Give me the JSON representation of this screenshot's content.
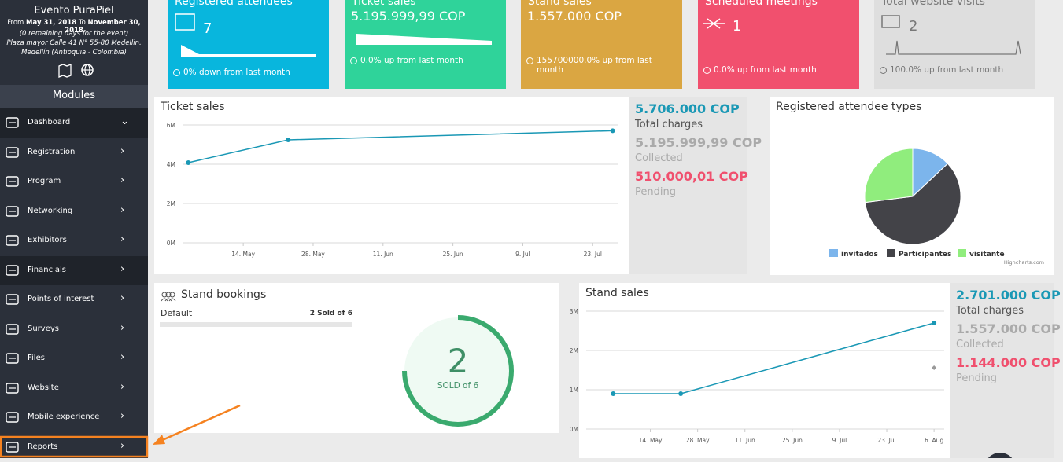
{
  "sidebar": {
    "event_name": "Evento PuraPiel",
    "dates": [
      "From",
      "May 31, 2018",
      "To",
      "November 30, 2018"
    ],
    "remaining": "(0 remaining days for the event)",
    "address": "Plaza mayor Calle 41 N° 55-80 Medellin.",
    "city": "Medellín (Antioquia - Colombia)",
    "modules_title": "Modules",
    "menu": [
      "Dashboard",
      "Registration",
      "Program",
      "Networking",
      "Exhibitors",
      "Financials",
      "Points of interest",
      "Surveys",
      "Files",
      "Website",
      "Mobile experience",
      "Reports"
    ]
  },
  "cards": [
    {
      "title": "Registered attendees",
      "value": 7,
      "trend": "0% down from last month"
    },
    {
      "title": "Ticket sales",
      "value": "5.195.999,99 COP",
      "trend": "0.0% up from last month"
    },
    {
      "title": "Stand sales",
      "value": "1.557.000 COP",
      "trend": "155700000.0% up from last month"
    },
    {
      "title": "Scheduled meetings",
      "value": 1,
      "trend": "0.0% up from last month"
    },
    {
      "title": "Total website visits",
      "value": 2,
      "trend": "100.0% up from last month"
    }
  ],
  "ticket_sales": {
    "title": "Ticket sales",
    "summary": {
      "total": "5.706.000 COP",
      "total_label": "Total charges",
      "collected": "5.195.999,99 COP",
      "collected_label": "Collected",
      "pending": "510.000,01 COP",
      "pending_label": "Pending"
    },
    "chart_data": {
      "type": "line",
      "x": [
        123,
        143,
        208
      ],
      "series": [
        {
          "color": "#1a98b5",
          "values": [
            4080000,
            5240000,
            5706000
          ]
        }
      ],
      "xlim": [
        122,
        209
      ],
      "xticks": [
        {
          "value": 134,
          "label": "14. May"
        },
        {
          "value": 148,
          "label": "28. May"
        },
        {
          "value": 162,
          "label": "11. Jun"
        },
        {
          "value": 176,
          "label": "25. Jun"
        },
        {
          "value": 190,
          "label": "9. Jul"
        },
        {
          "value": 204,
          "label": "23. Jul"
        }
      ],
      "ylim": [
        0,
        6000000
      ],
      "yticks": [
        {
          "value": 0,
          "label": "0M"
        },
        {
          "value": 2000000,
          "label": "2M"
        },
        {
          "value": 4000000,
          "label": "4M"
        },
        {
          "value": 6000000,
          "label": "6M"
        }
      ],
      "grid": true
    }
  },
  "attendee_types": {
    "title": "Registered attendee types",
    "credit": "Highcharts.com",
    "chart_data": {
      "type": "pie",
      "categories": [
        "invitados",
        "Participantes",
        "visitante"
      ],
      "values": [
        13,
        60,
        27
      ],
      "colors": [
        "#7cb5ec",
        "#434348",
        "#90ed7d"
      ]
    }
  },
  "stand_bookings": {
    "title": "Stand bookings",
    "rows": [
      {
        "name": "Default",
        "status": "2 Sold of 6"
      }
    ],
    "sold": 2,
    "sold_label": "SOLD of 6"
  },
  "stand_sales": {
    "title": "Stand sales",
    "summary": {
      "total": "2.701.000 COP",
      "total_label": "Total charges",
      "collected": "1.557.000 COP",
      "collected_label": "Collected",
      "pending": "1.144.000 COP",
      "pending_label": "Pending"
    },
    "chart_data": {
      "type": "line",
      "x": [
        123,
        143,
        218
      ],
      "series": [
        {
          "color": "#1a98b5",
          "values": [
            900000,
            900000,
            2700000
          ]
        },
        {
          "color": "#9a9a9a",
          "values": [
            null,
            null,
            1560000
          ]
        }
      ],
      "xlim": [
        115,
        221
      ],
      "xticks": [
        {
          "value": 134,
          "label": "14. May"
        },
        {
          "value": 148,
          "label": "28. May"
        },
        {
          "value": 162,
          "label": "11. Jun"
        },
        {
          "value": 176,
          "label": "25. Jun"
        },
        {
          "value": 190,
          "label": "9. Jul"
        },
        {
          "value": 204,
          "label": "23. Jul"
        },
        {
          "value": 218,
          "label": "6. Aug"
        }
      ],
      "ylim": [
        0,
        3000000
      ],
      "yticks": [
        {
          "value": 0,
          "label": "0M"
        },
        {
          "value": 1000000,
          "label": "1M"
        },
        {
          "value": 2000000,
          "label": "2M"
        },
        {
          "value": 3000000,
          "label": "3M"
        }
      ],
      "grid": true
    }
  }
}
